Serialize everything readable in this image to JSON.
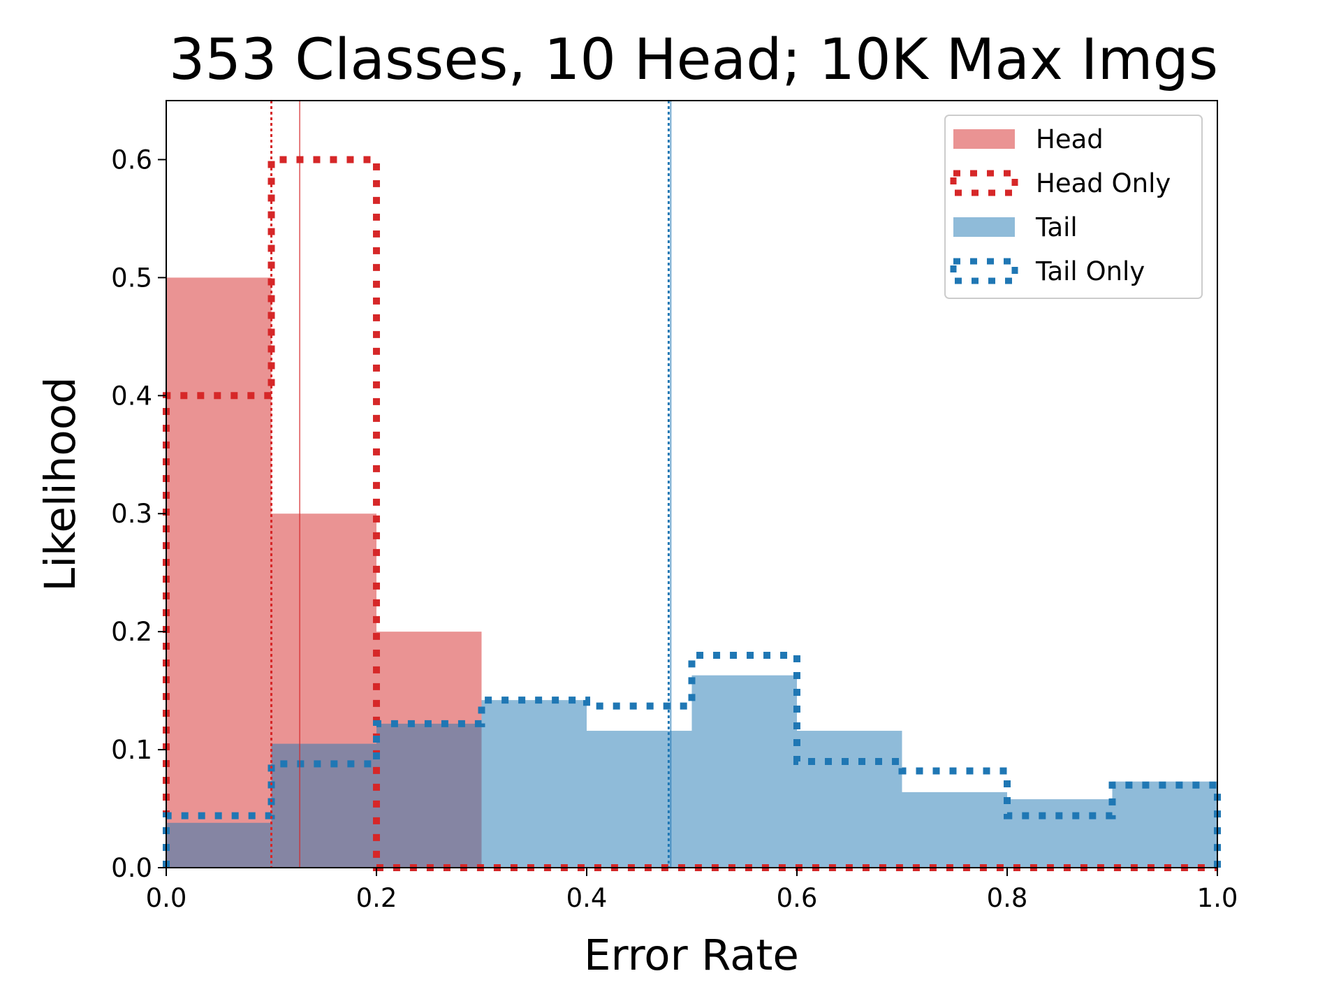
{
  "chart_data": {
    "type": "bar",
    "title": "353 Classes, 10 Head; 10K Max Imgs",
    "xlabel": "Error Rate",
    "ylabel": "Likelihood",
    "xlim": [
      0.0,
      1.0
    ],
    "ylim": [
      0.0,
      0.65
    ],
    "xticks": [
      "0.0",
      "0.2",
      "0.4",
      "0.6",
      "0.8",
      "1.0"
    ],
    "yticks": [
      "0.0",
      "0.1",
      "0.2",
      "0.3",
      "0.4",
      "0.5",
      "0.6"
    ],
    "bin_edges": [
      0.0,
      0.1,
      0.2,
      0.3,
      0.4,
      0.5,
      0.6,
      0.7,
      0.8,
      0.9,
      1.0
    ],
    "legend_position": "top-right",
    "grid": false,
    "series": [
      {
        "name": "Head",
        "style": "filled",
        "color": "#d62728",
        "values": [
          0.5,
          0.3,
          0.2,
          0,
          0,
          0,
          0,
          0,
          0,
          0
        ]
      },
      {
        "name": "Head Only",
        "style": "dotted-step",
        "color": "#d62728",
        "values": [
          0.4,
          0.6,
          0,
          0,
          0,
          0,
          0,
          0,
          0,
          0
        ]
      },
      {
        "name": "Tail",
        "style": "filled",
        "color": "#1f77b4",
        "values": [
          0.038,
          0.105,
          0.122,
          0.142,
          0.116,
          0.163,
          0.116,
          0.064,
          0.058,
          0.073
        ]
      },
      {
        "name": "Tail Only",
        "style": "dotted-step",
        "color": "#1f77b4",
        "values": [
          0.044,
          0.088,
          0.122,
          0.142,
          0.137,
          0.18,
          0.09,
          0.082,
          0.044,
          0.07
        ]
      }
    ],
    "vertical_lines": [
      {
        "x": 0.1,
        "color": "#d62728",
        "style": "dotted"
      },
      {
        "x": 0.127,
        "color": "#d62728",
        "style": "solid"
      },
      {
        "x": 0.478,
        "color": "#1f77b4",
        "style": "dotted"
      },
      {
        "x": 0.48,
        "color": "#1f77b4",
        "style": "solid"
      }
    ]
  }
}
